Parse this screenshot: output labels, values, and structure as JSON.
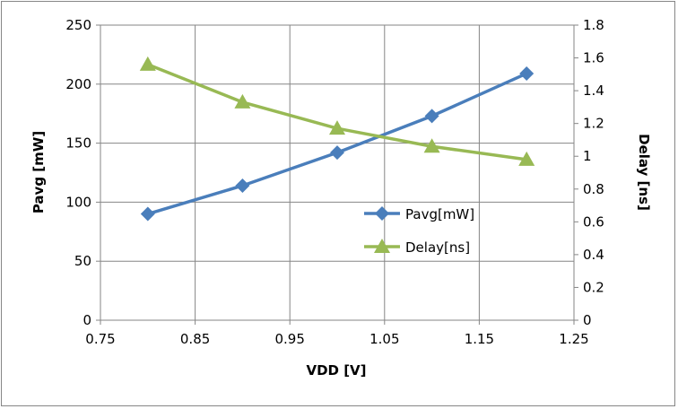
{
  "chart_data": {
    "type": "line",
    "title": "",
    "xlabel": "VDD [V]",
    "ylabel": "Pavg [mW]",
    "y2label": "Delay [ns]",
    "xlim": [
      0.75,
      1.25
    ],
    "ylim": [
      0,
      250
    ],
    "y2lim": [
      0,
      1.8
    ],
    "x_ticks": [
      "0.75",
      "0.85",
      "0.95",
      "1.05",
      "1.15",
      "1.25"
    ],
    "y_ticks": [
      "0",
      "50",
      "100",
      "150",
      "200",
      "250"
    ],
    "y2_ticks": [
      "0",
      "0.2",
      "0.4",
      "0.6",
      "0.8",
      "1",
      "1.2",
      "1.4",
      "1.6",
      "1.8"
    ],
    "grid": true,
    "legend_position": "center-right",
    "x": [
      0.8,
      0.9,
      1.0,
      1.1,
      1.2
    ],
    "series": [
      {
        "name": "Pavg[mW]",
        "axis": "left",
        "marker": "diamond",
        "color": "#4a7ebb",
        "values": [
          90,
          114,
          142,
          173,
          209
        ]
      },
      {
        "name": "Delay[ns]",
        "axis": "right",
        "marker": "triangle",
        "color": "#98b954",
        "values": [
          1.56,
          1.33,
          1.17,
          1.06,
          0.98
        ]
      }
    ]
  }
}
